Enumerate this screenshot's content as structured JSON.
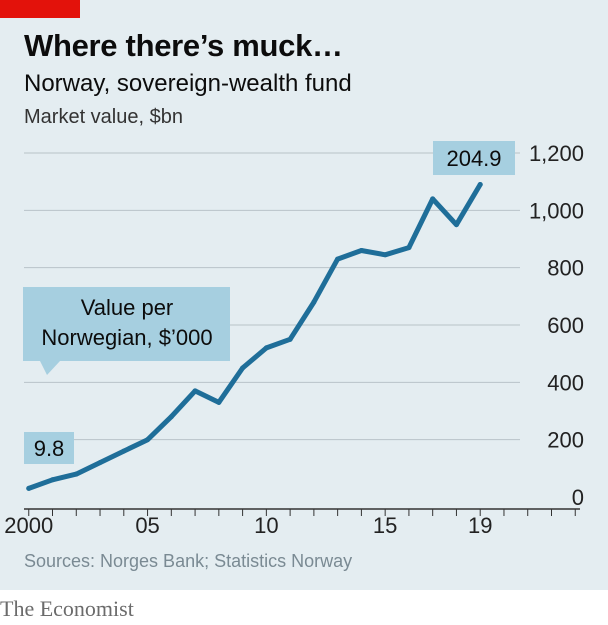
{
  "header": {
    "title": "Where there’s muck…",
    "subtitle": "Norway, sovereign-wealth fund",
    "unit": "Market value, $bn"
  },
  "footer": {
    "source": "Sources: Norges Bank; Statistics Norway",
    "brand": "The Economist"
  },
  "colors": {
    "line": "#1f6e99",
    "annotation_box": "#a6cfe0",
    "panel": "#e4edf1",
    "accent": "#e3120b",
    "grid": "#b9c3c8"
  },
  "chart_data": {
    "type": "line",
    "x": [
      2000,
      2001,
      2002,
      2003,
      2004,
      2005,
      2006,
      2007,
      2008,
      2009,
      2010,
      2011,
      2012,
      2013,
      2014,
      2015,
      2016,
      2017,
      2018,
      2019
    ],
    "values": [
      30,
      60,
      80,
      120,
      160,
      200,
      280,
      370,
      330,
      450,
      520,
      550,
      680,
      830,
      860,
      845,
      870,
      1040,
      950,
      1090
    ],
    "xlim": [
      1999.8,
      2023.2
    ],
    "ylim": [
      0,
      1200
    ],
    "y_ticks": [
      0,
      200,
      400,
      600,
      800,
      1000,
      1200
    ],
    "y_tick_labels": [
      "0",
      "200",
      "400",
      "600",
      "800",
      "1,000",
      "1,200"
    ],
    "x_ticks": [
      2000,
      2005,
      2010,
      2015,
      2019
    ],
    "x_tick_labels": [
      "2000",
      "05",
      "10",
      "15",
      "19"
    ],
    "x_minor_ticks": [
      2000,
      2001,
      2002,
      2003,
      2004,
      2005,
      2006,
      2007,
      2008,
      2009,
      2010,
      2011,
      2012,
      2013,
      2014,
      2015,
      2016,
      2017,
      2018,
      2019,
      2020,
      2021,
      2022,
      2023
    ],
    "y_axis_side": "right",
    "grid": "horizontal",
    "annotations": {
      "legend_box": "Value per\nNorwegian, $’000",
      "start_value": "9.8",
      "end_value": "204.9"
    }
  }
}
